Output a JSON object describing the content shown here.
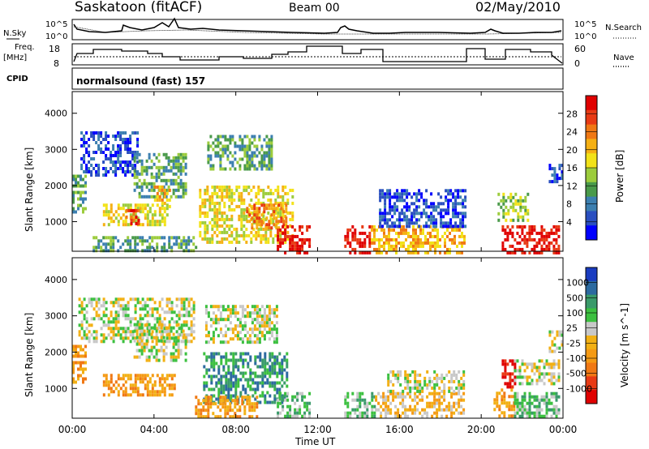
{
  "header": {
    "station": "Saskatoon (fitACF)",
    "beam": "Beam 00",
    "date": "02/May/2010"
  },
  "top_panels": {
    "nsky_label": "N.Sky",
    "nsky_ticks": [
      "10^5",
      "10^0"
    ],
    "nsearch_label": "N.Search",
    "nsearch_ticks": [
      "10^5",
      "10^0"
    ],
    "freq_label_1": "Freq.",
    "freq_label_2": "[MHz]",
    "freq_ticks": [
      "18",
      "8"
    ],
    "nave_label": "Nave",
    "nave_ticks": [
      "60",
      "0"
    ],
    "cpid_label": "CPID",
    "cpid_value": "normalsound (fast) 157"
  },
  "axes": {
    "ylabel": "Slant Range [km]",
    "xlabel": "Time UT",
    "x_ticks": [
      "00:00",
      "04:00",
      "08:00",
      "12:00",
      "16:00",
      "20:00",
      "00:00"
    ],
    "y_ticks": [
      "1000",
      "2000",
      "3000",
      "4000"
    ]
  },
  "chart_data": [
    {
      "type": "heatmap",
      "name": "power",
      "xlabel": "Time UT",
      "ylabel": "Slant Range [km]",
      "xlim": [
        0,
        24
      ],
      "ylim": [
        180,
        4600
      ],
      "colorbar": {
        "label": "Power [dB]",
        "ticks": [
          "4",
          "8",
          "12",
          "16",
          "20",
          "24",
          "28"
        ],
        "colors": [
          "#0000ff",
          "#2a4fc0",
          "#3c7fb0",
          "#4a9a4a",
          "#9ccc3c",
          "#f2e218",
          "#f5b014",
          "#f07814",
          "#e83a14",
          "#e00000"
        ]
      },
      "regions": [
        {
          "t0": 0.4,
          "t1": 3.2,
          "r0": 2300,
          "r1": 3500,
          "level": 1
        },
        {
          "t0": 0.0,
          "t1": 0.7,
          "r0": 1300,
          "r1": 2300,
          "level": 3
        },
        {
          "t0": 1.5,
          "t1": 4.6,
          "r0": 900,
          "r1": 1500,
          "level": 5
        },
        {
          "t0": 2.6,
          "t1": 3.3,
          "r0": 950,
          "r1": 1350,
          "level": 8
        },
        {
          "t0": 3.0,
          "t1": 5.6,
          "r0": 1700,
          "r1": 2900,
          "level": 3
        },
        {
          "t0": 4.0,
          "t1": 4.8,
          "r0": 1400,
          "r1": 2000,
          "level": 6
        },
        {
          "t0": 1.0,
          "t1": 6.0,
          "r0": 180,
          "r1": 600,
          "level": 3
        },
        {
          "t0": 6.6,
          "t1": 9.8,
          "r0": 2500,
          "r1": 3400,
          "level": 3
        },
        {
          "t0": 6.2,
          "t1": 10.8,
          "r0": 400,
          "r1": 2000,
          "level": 5
        },
        {
          "t0": 8.5,
          "t1": 10.5,
          "r0": 800,
          "r1": 1500,
          "level": 7
        },
        {
          "t0": 10.0,
          "t1": 11.6,
          "r0": 180,
          "r1": 900,
          "level": 9
        },
        {
          "t0": 13.3,
          "t1": 14.6,
          "r0": 180,
          "r1": 900,
          "level": 9
        },
        {
          "t0": 14.6,
          "t1": 19.2,
          "r0": 180,
          "r1": 900,
          "level": 6
        },
        {
          "t0": 15.0,
          "t1": 19.2,
          "r0": 900,
          "r1": 1900,
          "level": 1
        },
        {
          "t0": 20.8,
          "t1": 22.3,
          "r0": 1000,
          "r1": 1800,
          "level": 4
        },
        {
          "t0": 21.0,
          "t1": 23.8,
          "r0": 180,
          "r1": 900,
          "level": 9
        },
        {
          "t0": 23.3,
          "t1": 24.0,
          "r0": 2100,
          "r1": 2600,
          "level": 1
        }
      ]
    },
    {
      "type": "heatmap",
      "name": "velocity",
      "xlabel": "Time UT",
      "ylabel": "Slant Range [km]",
      "xlim": [
        0,
        24
      ],
      "ylim": [
        180,
        4600
      ],
      "colorbar": {
        "label": "Velocity [m s^-1]",
        "ticks": [
          "1000",
          "500",
          "100",
          "25",
          "-25",
          "-100",
          "-500",
          "-1000"
        ],
        "colors": [
          "#1a3cc0",
          "#2c6aa0",
          "#3a9a6a",
          "#3cc040",
          "#c8c8c8",
          "#f2b014",
          "#f59a14",
          "#f07814",
          "#e83a14",
          "#e00000"
        ]
      },
      "regions": [
        {
          "t0": 0.3,
          "t1": 6.0,
          "r0": 2300,
          "r1": 3500,
          "level": 4
        },
        {
          "t0": 0.0,
          "t1": 0.6,
          "r0": 1200,
          "r1": 2200,
          "level": 6
        },
        {
          "t0": 1.5,
          "t1": 5.0,
          "r0": 800,
          "r1": 1400,
          "level": 6
        },
        {
          "t0": 3.0,
          "t1": 5.5,
          "r0": 1800,
          "r1": 2800,
          "level": 4
        },
        {
          "t0": 6.5,
          "t1": 10.0,
          "r0": 2300,
          "r1": 3300,
          "level": 4
        },
        {
          "t0": 6.4,
          "t1": 10.5,
          "r0": 600,
          "r1": 2000,
          "level": 2
        },
        {
          "t0": 6.0,
          "t1": 9.0,
          "r0": 200,
          "r1": 800,
          "level": 6
        },
        {
          "t0": 10.0,
          "t1": 11.6,
          "r0": 200,
          "r1": 900,
          "level": 3
        },
        {
          "t0": 13.3,
          "t1": 14.8,
          "r0": 200,
          "r1": 900,
          "level": 3
        },
        {
          "t0": 14.8,
          "t1": 19.2,
          "r0": 200,
          "r1": 900,
          "level": 5
        },
        {
          "t0": 15.4,
          "t1": 19.2,
          "r0": 900,
          "r1": 1500,
          "level": 4
        },
        {
          "t0": 20.6,
          "t1": 21.6,
          "r0": 200,
          "r1": 1000,
          "level": 6
        },
        {
          "t0": 21.0,
          "t1": 21.6,
          "r0": 1000,
          "r1": 1800,
          "level": 9
        },
        {
          "t0": 21.6,
          "t1": 23.8,
          "r0": 200,
          "r1": 900,
          "level": 3
        },
        {
          "t0": 21.6,
          "t1": 23.8,
          "r0": 1100,
          "r1": 1800,
          "level": 4
        },
        {
          "t0": 23.3,
          "t1": 24.0,
          "r0": 2000,
          "r1": 2600,
          "level": 4
        }
      ]
    }
  ]
}
